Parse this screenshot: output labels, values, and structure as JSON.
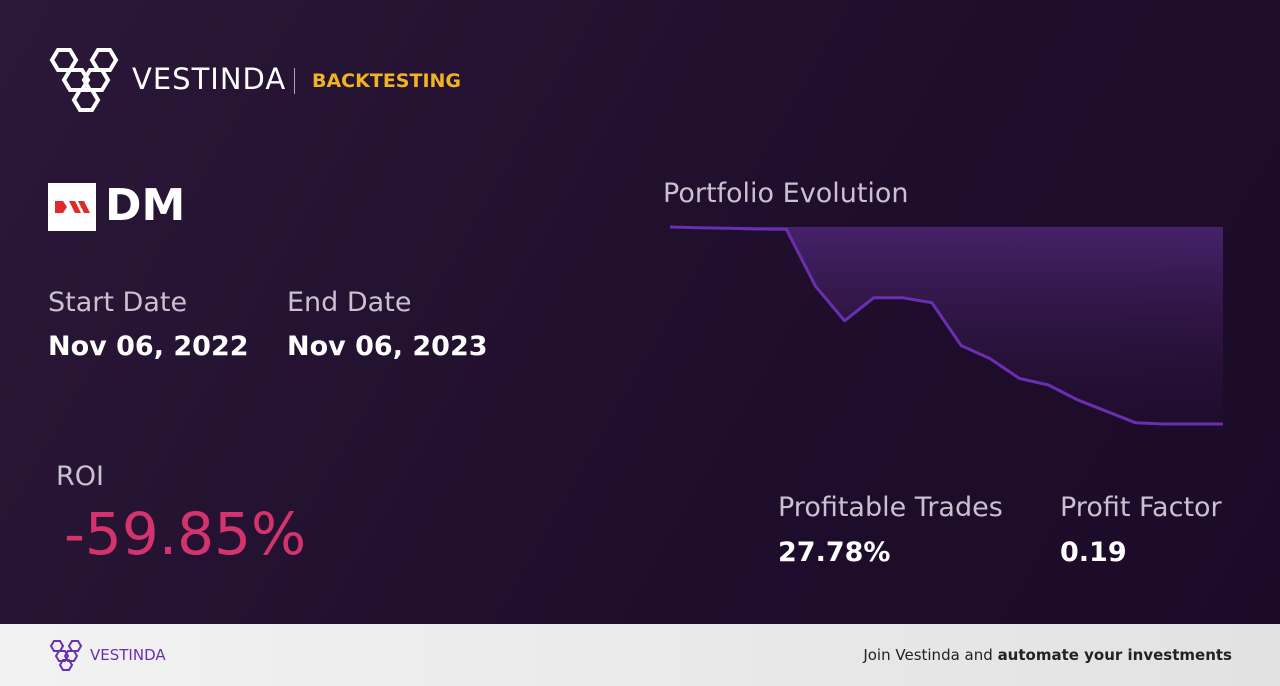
{
  "header": {
    "brand": "VESTINDA",
    "section": "BACKTESTING"
  },
  "asset": {
    "ticker": "DM"
  },
  "dates": {
    "start_label": "Start Date",
    "start": "Nov 06, 2022",
    "end_label": "End Date",
    "end": "Nov 06, 2023"
  },
  "roi": {
    "label": "ROI",
    "value": "-59.85%"
  },
  "chart_data": {
    "type": "line",
    "title": "Portfolio Evolution",
    "values": [
      100,
      99.8,
      99.6,
      99.4,
      99.3,
      82,
      71.5,
      78.5,
      78.5,
      77,
      64,
      60,
      54,
      52,
      47.5,
      44,
      40.5,
      40.15,
      40.15,
      40.15
    ],
    "color": "#6a2fb0"
  },
  "stats": [
    {
      "label": "Profitable Trades",
      "value": "27.78%"
    },
    {
      "label": "Profit Factor",
      "value": "0.19"
    }
  ],
  "footer": {
    "brand": "VESTINDA",
    "text": "Join Vestinda and",
    "bold": "automate your investments"
  }
}
